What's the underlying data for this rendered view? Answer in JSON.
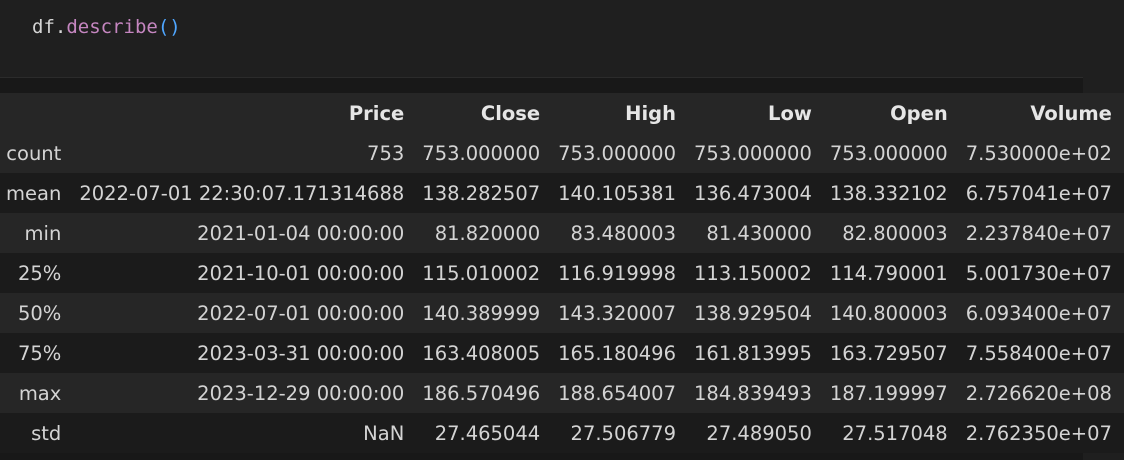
{
  "code": {
    "object": "df",
    "method": "describe",
    "parens": "()"
  },
  "table": {
    "columns": [
      "Price",
      "Close",
      "High",
      "Low",
      "Open",
      "Volume"
    ],
    "rows": [
      {
        "index": "count",
        "values": [
          "753",
          "753.000000",
          "753.000000",
          "753.000000",
          "753.000000",
          "7.530000e+02"
        ]
      },
      {
        "index": "mean",
        "values": [
          "2022-07-01 22:30:07.171314688",
          "138.282507",
          "140.105381",
          "136.473004",
          "138.332102",
          "6.757041e+07"
        ]
      },
      {
        "index": "min",
        "values": [
          "2021-01-04 00:00:00",
          "81.820000",
          "83.480003",
          "81.430000",
          "82.800003",
          "2.237840e+07"
        ]
      },
      {
        "index": "25%",
        "values": [
          "2021-10-01 00:00:00",
          "115.010002",
          "116.919998",
          "113.150002",
          "114.790001",
          "5.001730e+07"
        ]
      },
      {
        "index": "50%",
        "values": [
          "2022-07-01 00:00:00",
          "140.389999",
          "143.320007",
          "138.929504",
          "140.800003",
          "6.093400e+07"
        ]
      },
      {
        "index": "75%",
        "values": [
          "2023-03-31 00:00:00",
          "163.408005",
          "165.180496",
          "161.813995",
          "163.729507",
          "7.558400e+07"
        ]
      },
      {
        "index": "max",
        "values": [
          "2023-12-29 00:00:00",
          "186.570496",
          "188.654007",
          "184.839493",
          "187.199997",
          "2.726620e+08"
        ]
      },
      {
        "index": "std",
        "values": [
          "NaN",
          "27.465044",
          "27.506779",
          "27.489050",
          "27.517048",
          "2.762350e+07"
        ]
      }
    ]
  }
}
